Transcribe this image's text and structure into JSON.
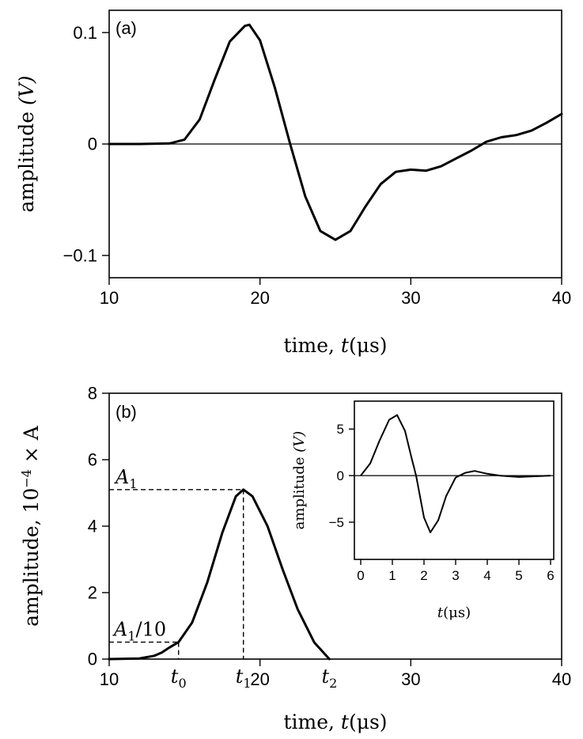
{
  "chart_data": [
    {
      "panel": "(a)",
      "type": "line",
      "xlabel_text": "time, ",
      "xlabel_var": "t",
      "xlabel_unit": "(μs)",
      "ylabel_text": "amplitude ",
      "ylabel_unit": "(V)",
      "xlim": [
        10,
        40
      ],
      "ylim": [
        -0.12,
        0.12
      ],
      "x_ticks": [
        10,
        20,
        30,
        40
      ],
      "y_ticks": [
        0.1,
        0,
        -0.1
      ],
      "y_tick_labels": [
        "0.1",
        "0",
        "−0.1"
      ],
      "series": [
        {
          "x": [
            10,
            12,
            14,
            15,
            16,
            17,
            18,
            19,
            19.3,
            20,
            21,
            22,
            23,
            24,
            25,
            26,
            27,
            28,
            29,
            30,
            31,
            32,
            33,
            34,
            35,
            36,
            37,
            38,
            39,
            40
          ],
          "y": [
            0,
            0,
            0.0005,
            0.004,
            0.022,
            0.058,
            0.092,
            0.106,
            0.107,
            0.093,
            0.05,
            0,
            -0.047,
            -0.078,
            -0.086,
            -0.078,
            -0.056,
            -0.036,
            -0.025,
            -0.023,
            -0.024,
            -0.02,
            -0.013,
            -0.006,
            0.002,
            0.006,
            0.008,
            0.012,
            0.019,
            0.027
          ]
        }
      ]
    },
    {
      "panel": "(b)",
      "type": "line",
      "xlabel_text": "time, ",
      "xlabel_var": "t",
      "xlabel_unit": "(μs)",
      "ylabel_text": "amplitude, 10",
      "ylabel_exp": "−4",
      "ylabel_tail": " × A",
      "xlim": [
        10,
        40
      ],
      "ylim": [
        0,
        8
      ],
      "x_ticks": [
        10,
        20,
        30,
        40
      ],
      "y_ticks": [
        0,
        2,
        4,
        6,
        8
      ],
      "series": [
        {
          "x": [
            10,
            12,
            13,
            13.5,
            14,
            14.6,
            15.5,
            16.5,
            17.5,
            18.4,
            18.9,
            19.5,
            20.5,
            21.5,
            22.5,
            23.6,
            24.6
          ],
          "y": [
            0,
            0.02,
            0.1,
            0.2,
            0.35,
            0.51,
            1.1,
            2.3,
            3.8,
            4.9,
            5.1,
            4.9,
            4.0,
            2.7,
            1.5,
            0.5,
            0
          ]
        }
      ],
      "annotations": {
        "A1": {
          "label": "A",
          "sub": "1",
          "value": 5.1,
          "at_x": 18.9
        },
        "A1_10": {
          "label": "A",
          "sub": "1",
          "tail": "/10",
          "value": 0.51,
          "at_x": 14.6
        },
        "t0": {
          "label": "t",
          "sub": "0",
          "x": 14.6
        },
        "t1": {
          "label": "t",
          "sub": "1",
          "x": 18.9
        },
        "t2": {
          "label": "t",
          "sub": "2",
          "x": 24.6
        }
      }
    },
    {
      "panel": "inset",
      "type": "line",
      "xlabel_var": "t",
      "xlabel_unit": "(μs)",
      "ylabel_text": "amplitude ",
      "ylabel_unit": "(V)",
      "xlim": [
        -0.2,
        6.1
      ],
      "ylim": [
        -9,
        8
      ],
      "x_ticks": [
        0,
        1,
        2,
        3,
        4,
        5,
        6
      ],
      "y_ticks": [
        5,
        0,
        -5
      ],
      "y_tick_labels": [
        "5",
        "0",
        "−5"
      ],
      "series": [
        {
          "x": [
            0,
            0.3,
            0.6,
            0.9,
            1.15,
            1.4,
            1.6,
            1.75,
            2.0,
            2.2,
            2.45,
            2.7,
            3.0,
            3.3,
            3.6,
            4.0,
            4.4,
            5.0,
            6.0
          ],
          "y": [
            0,
            1.3,
            3.8,
            6.0,
            6.5,
            4.8,
            2.0,
            0,
            -4.5,
            -6.1,
            -4.8,
            -2.2,
            -0.2,
            0.3,
            0.5,
            0.2,
            0,
            -0.15,
            0
          ]
        }
      ]
    }
  ]
}
